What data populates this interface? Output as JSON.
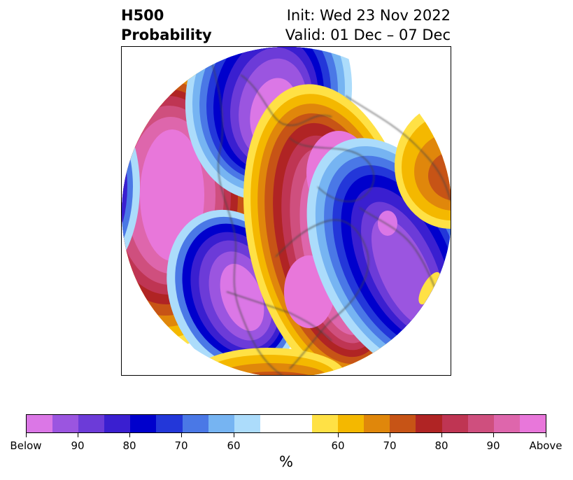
{
  "title": {
    "left": "H500\nProbability",
    "init": "Init: Wed 23 Nov 2022",
    "valid": "Valid: 01 Dec – 07 Dec"
  },
  "colorbar": {
    "colors": [
      "#db77e6",
      "#9b55e0",
      "#6c3bd8",
      "#3a1fd0",
      "#0000cc",
      "#2337d9",
      "#4a78e6",
      "#76b4f2",
      "#acdcfb",
      "#ffffff",
      "#ffe145",
      "#f4b800",
      "#e0870b",
      "#c75416",
      "#b02424",
      "#bf3553",
      "#cf4f7e",
      "#de66ac",
      "#e877da"
    ],
    "tick_labels": [
      "Below",
      "90",
      "80",
      "70",
      "60",
      "60",
      "70",
      "80",
      "90",
      "Above"
    ],
    "unit": "%"
  }
}
